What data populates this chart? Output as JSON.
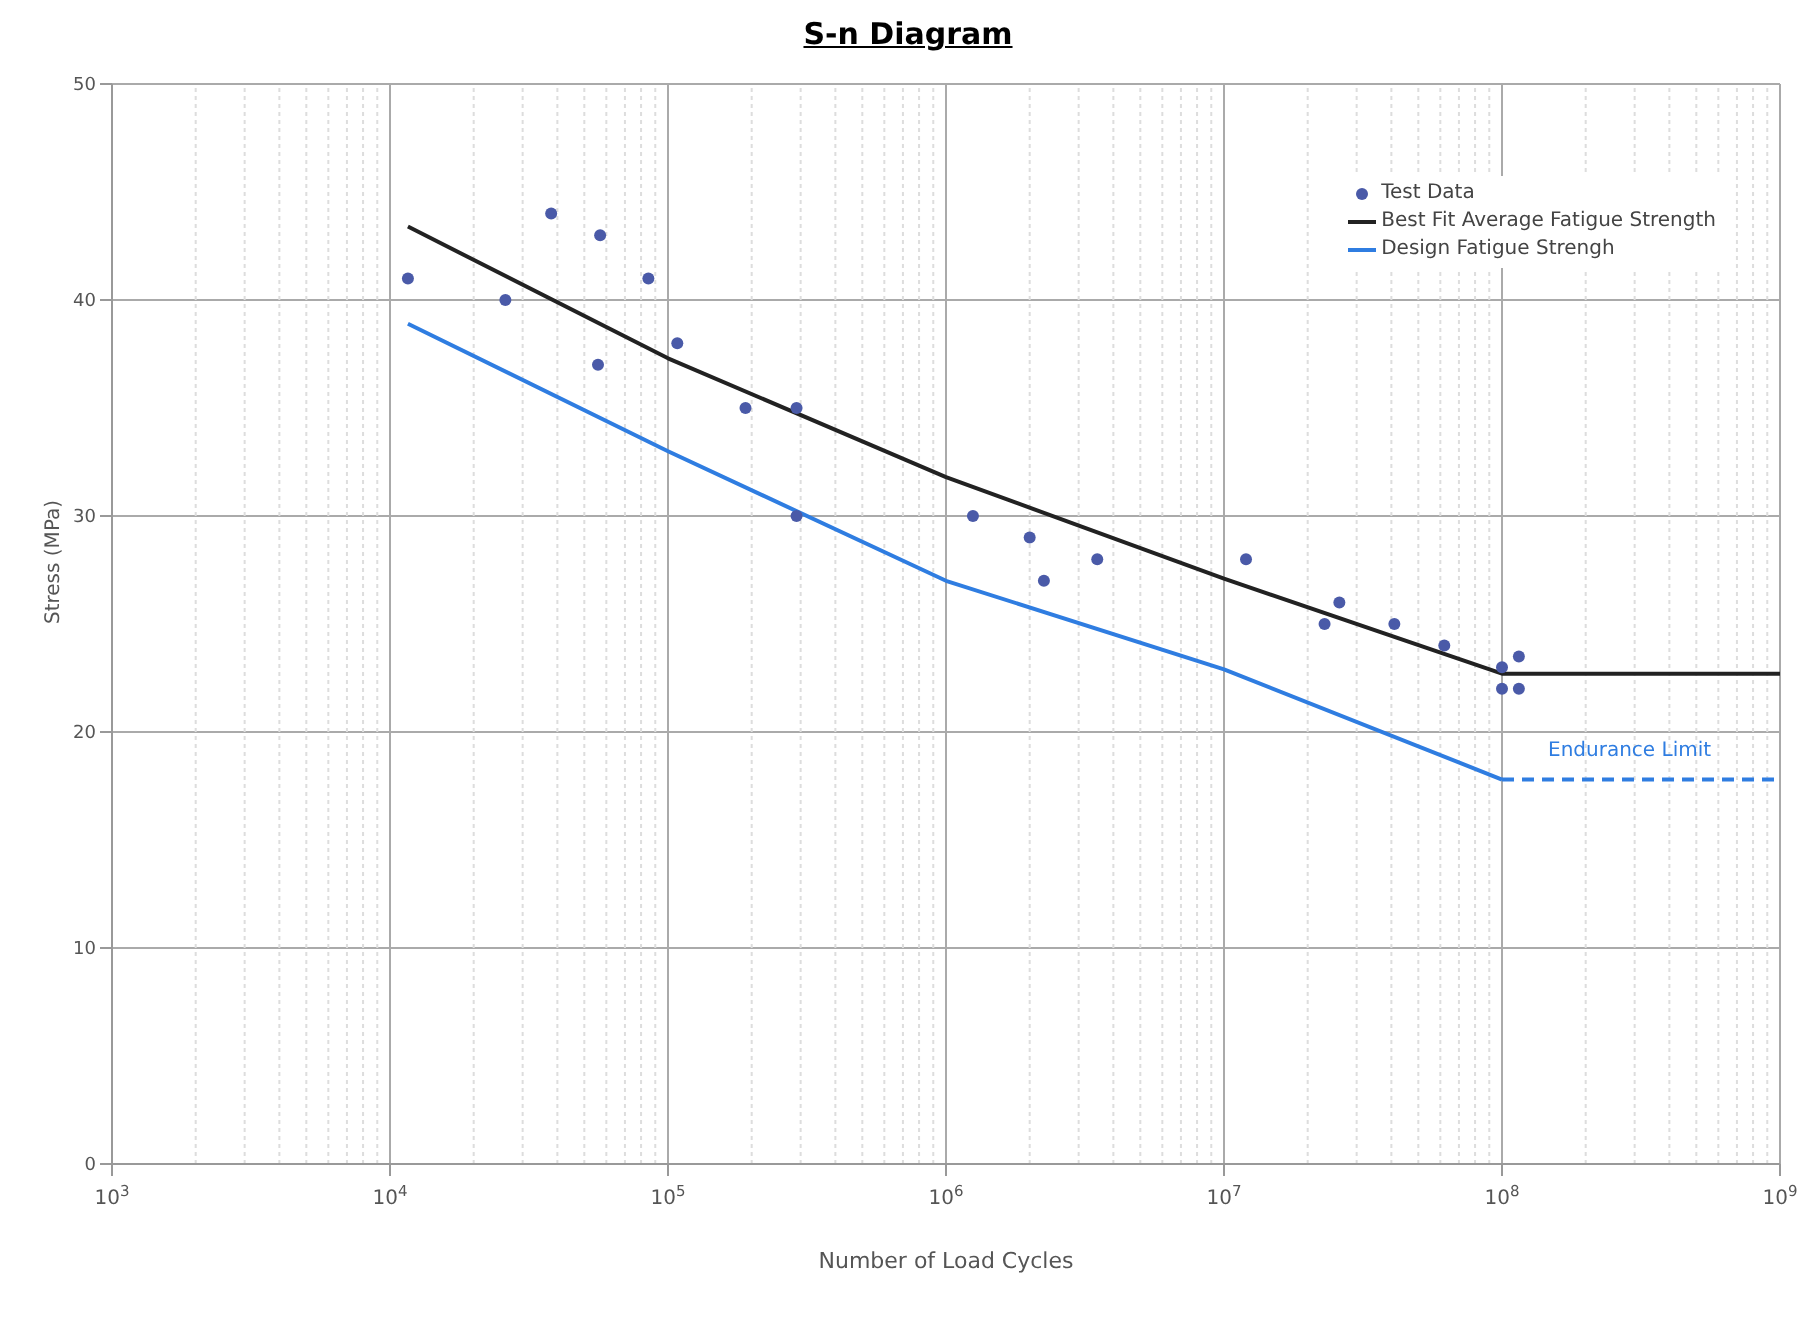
{
  "chart_data": {
    "type": "scatter",
    "title": "S-n Diagram",
    "xlabel": "Number of Load Cycles",
    "ylabel": "Stress (MPa)",
    "log": "x",
    "xlim": [
      1000,
      1000000000
    ],
    "xticks": [
      {
        "value": 1000,
        "label": "10$^{3}$"
      },
      {
        "value": 10000,
        "label": "10$^{4}$"
      },
      {
        "value": 100000,
        "label": "10$^{5}$"
      },
      {
        "value": 1000000,
        "label": "10$^{6}$"
      },
      {
        "value": 10000000,
        "label": "10$^{7}$"
      },
      {
        "value": 100000000,
        "label": "10$^{8}$"
      },
      {
        "value": 1000000000,
        "label": "10$^{9}$"
      }
    ],
    "ylim": [
      0,
      50
    ],
    "yticks": [
      0,
      10,
      20,
      30,
      40,
      50
    ],
    "grid": true,
    "legend": "top right",
    "series": [
      {
        "name": "Test Data",
        "color": "#4a5aa8",
        "marker": "circle",
        "x": [
          11600,
          26000,
          38000,
          57000,
          56000,
          85000,
          108000,
          190000,
          290000,
          290000,
          1250000,
          2000000,
          2250000,
          3500000,
          12000000,
          23000000,
          26000000,
          41000000,
          62000000,
          100000000,
          100000000,
          115000000,
          115000000
        ],
        "values": [
          41,
          40,
          44,
          43,
          37,
          41,
          38,
          35,
          35,
          30,
          30,
          29,
          27,
          28,
          28,
          25,
          26,
          25,
          24,
          23,
          22,
          23.5,
          22
        ]
      },
      {
        "name": "Best Fit Average Fatigue Strength",
        "type": "line",
        "color": "#222222",
        "line_style": "solid",
        "x": [
          11600,
          100000,
          1000000,
          10000000,
          100000000,
          1000000000
        ],
        "values": [
          43.4,
          37.3,
          31.8,
          27.1,
          22.7,
          22.7
        ]
      },
      {
        "name": "Design Fatigue Strengh",
        "type": "line",
        "color": "#2f7de1",
        "line_style": "solid",
        "x": [
          11600,
          100000,
          1000000,
          10000000,
          100000000
        ],
        "values": [
          38.9,
          33,
          27,
          22.9,
          17.8
        ]
      },
      {
        "type": "line",
        "color": "#2f7de1",
        "line_style": "dashed",
        "x": [
          100000000,
          1000000000
        ],
        "values": [
          17.8,
          17.8
        ]
      }
    ],
    "annotations": [
      "Endurance Limit"
    ]
  }
}
